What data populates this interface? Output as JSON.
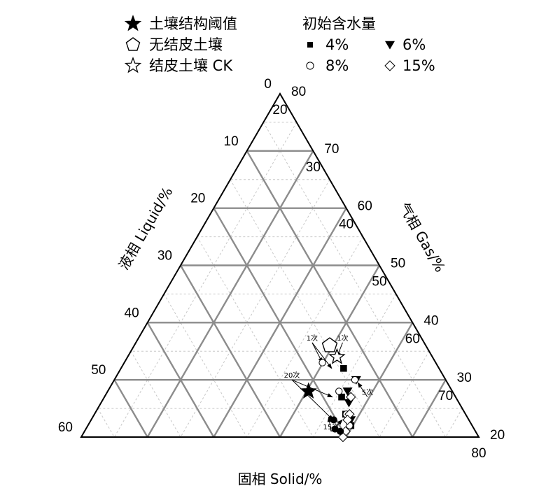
{
  "chart_data": {
    "type": "scatter",
    "subtype": "ternary",
    "grid": true,
    "legend_placement": "top",
    "axes": {
      "solid": {
        "label": "固相 Solid/%",
        "min": 20,
        "max": 80,
        "ticks": [
          "20",
          "30",
          "40",
          "50",
          "60",
          "70",
          "80"
        ]
      },
      "liquid": {
        "label": "液相 Liquid/%",
        "min": 0,
        "max": 60,
        "ticks": [
          "0",
          "10",
          "20",
          "30",
          "40",
          "50",
          "60"
        ]
      },
      "gas": {
        "label": "气相 Gas/%",
        "min": 20,
        "max": 80,
        "ticks": [
          "80",
          "70",
          "60",
          "50",
          "40",
          "30",
          "20"
        ]
      }
    },
    "legend": {
      "group1": [
        {
          "name": "土壤结构阈值",
          "marker": "filled-star"
        },
        {
          "name": "无结皮土壤",
          "marker": "open-pentagon"
        },
        {
          "name": "结皮土壤 CK",
          "marker": "open-star"
        }
      ],
      "group2_title": "初始含水量",
      "group2": [
        {
          "name": "4%",
          "marker": "filled-square"
        },
        {
          "name": "6%",
          "marker": "filled-triangle-down"
        },
        {
          "name": "8%",
          "marker": "open-circle"
        },
        {
          "name": "15%",
          "marker": "open-diamond"
        }
      ]
    },
    "series": [
      {
        "name": "土壤结构阈值",
        "points": [
          {
            "solid": 50.3,
            "liquid": 21.7,
            "gas": 28
          }
        ]
      },
      {
        "name": "无结皮土壤",
        "points": [
          {
            "solid": 49.5,
            "liquid": 14.5,
            "gas": 36
          }
        ]
      },
      {
        "name": "结皮土壤 CK",
        "points": [
          {
            "solid": 51.6,
            "liquid": 14.4,
            "gas": 34
          }
        ]
      },
      {
        "name": "4%",
        "points": [
          {
            "solid": 53.6,
            "liquid": 14.4,
            "gas": 32
          },
          {
            "solid": 55.8,
            "liquid": 17.2,
            "gas": 27
          },
          {
            "solid": 57.9,
            "liquid": 18.1,
            "gas": 24
          },
          {
            "solid": 59.7,
            "liquid": 18.3,
            "gas": 22
          }
        ]
      },
      {
        "name": "6%",
        "points": [
          {
            "solid": 56.5,
            "liquid": 13.5,
            "gas": 30
          },
          {
            "solid": 56.2,
            "liquid": 15.8,
            "gas": 28
          },
          {
            "solid": 57.4,
            "liquid": 16.6,
            "gas": 26
          },
          {
            "solid": 59.2,
            "liquid": 17.8,
            "gas": 23
          }
        ]
      },
      {
        "name": "8%",
        "points": [
          {
            "solid": 49.9,
            "liquid": 17.1,
            "gas": 33
          },
          {
            "solid": 56.3,
            "liquid": 13.7,
            "gas": 30
          },
          {
            "solid": 54.9,
            "liquid": 17.1,
            "gas": 28
          },
          {
            "solid": 58.0,
            "liquid": 18.0,
            "gas": 24
          },
          {
            "solid": 59.5,
            "liquid": 18.5,
            "gas": 22
          }
        ]
      },
      {
        "name": "15%",
        "points": [
          {
            "solid": 57.2,
            "liquid": 15.8,
            "gas": 27
          },
          {
            "solid": 58.5,
            "liquid": 17.5,
            "gas": 24
          },
          {
            "solid": 58.7,
            "liquid": 18.3,
            "gas": 23
          },
          {
            "solid": 59.4,
            "liquid": 19.6,
            "gas": 21
          },
          {
            "solid": 59.5,
            "liquid": 20.5,
            "gas": 20
          }
        ]
      }
    ],
    "annotations": [
      {
        "text": "1次",
        "at": {
          "solid": 51.2,
          "liquid": 12.3,
          "gas": 36.5
        },
        "arrows_to": [
          {
            "solid": 51.6,
            "liquid": 14.4,
            "gas": 34
          }
        ]
      },
      {
        "text": "1次",
        "at": {
          "solid": 46.6,
          "liquid": 16.9,
          "gas": 36.5
        },
        "arrows_to": [
          {
            "solid": 49.9,
            "liquid": 17.1,
            "gas": 33
          },
          {
            "solid": 51.8,
            "liquid": 16.2,
            "gas": 32
          }
        ]
      },
      {
        "text": "5次",
        "at": {
          "solid": 59.7,
          "liquid": 13.3,
          "gas": 27
        },
        "arrows_to": [
          {
            "solid": 57.0,
            "liquid": 13.5,
            "gas": 29.5
          }
        ]
      },
      {
        "text": "20次",
        "at": {
          "solid": 46.8,
          "liquid": 23.2,
          "gas": 30
        },
        "arrows_to": [
          {
            "solid": 54.4,
            "liquid": 18.6,
            "gas": 27
          },
          {
            "solid": 56.5,
            "liquid": 20.5,
            "gas": 23
          }
        ]
      },
      {
        "text": "15次",
        "at": {
          "solid": 57.2,
          "liquid": 21.8,
          "gas": 21
        },
        "arrows_to": [
          {
            "solid": 55.6,
            "liquid": 20.9,
            "gas": 23.5
          },
          {
            "solid": 57.9,
            "liquid": 19.1,
            "gas": 23
          }
        ]
      }
    ]
  }
}
